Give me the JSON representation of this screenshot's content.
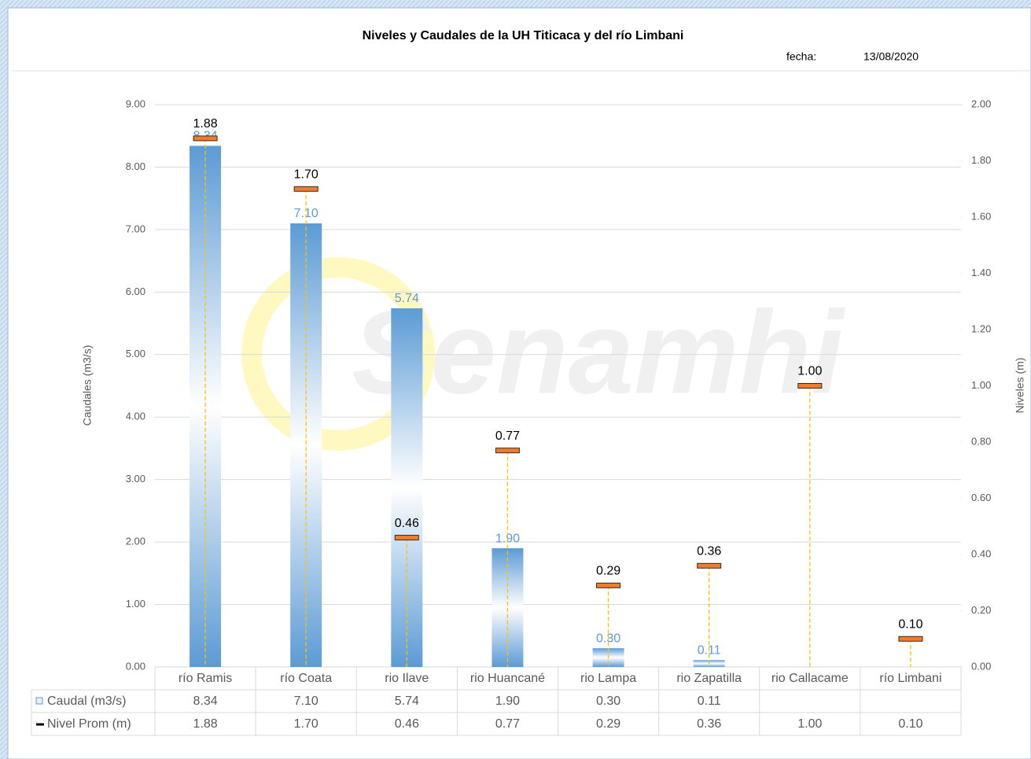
{
  "chart_data": {
    "type": "bar_line",
    "title": "Niveles y Caudales de la UH Titicaca y del río Limbani",
    "date_label": "fecha:",
    "date": "13/08/2020",
    "watermark": "Senamhi",
    "ylabel": "Caudales (m3/s)",
    "y2label": "Niveles (m)",
    "categories": [
      "río Ramis",
      "río Coata",
      "rio Ilave",
      "rio Huancané",
      "rio Lampa",
      "rio Zapatilla",
      "rio Callacame",
      "río Limbani"
    ],
    "series": [
      {
        "name": "Caudal (m3/s)",
        "type": "bar",
        "color": "#5b9bd5",
        "axis": "y",
        "values": [
          8.34,
          7.1,
          5.74,
          1.9,
          0.3,
          0.11,
          null,
          null
        ],
        "value_labels": [
          "8.34",
          "7.10",
          "5.74",
          "1.90",
          "0.30",
          "0.11",
          null,
          null
        ]
      },
      {
        "name": "Nivel Prom (m)",
        "type": "marker",
        "color": "#ed7d31",
        "axis": "y2",
        "values": [
          1.88,
          1.7,
          0.46,
          0.77,
          0.29,
          0.36,
          1.0,
          0.1
        ],
        "value_labels": [
          "1.88",
          "1.70",
          "0.46",
          "0.77",
          "0.29",
          "0.36",
          "1.00",
          "0.10"
        ]
      }
    ],
    "ylim": [
      0,
      9
    ],
    "yticks": [
      {
        "value": 0,
        "label": "0.00"
      },
      {
        "value": 1,
        "label": "1.00"
      },
      {
        "value": 2,
        "label": "2.00"
      },
      {
        "value": 3,
        "label": "3.00"
      },
      {
        "value": 4,
        "label": "4.00"
      },
      {
        "value": 5,
        "label": "5.00"
      },
      {
        "value": 6,
        "label": "6.00"
      },
      {
        "value": 7,
        "label": "7.00"
      },
      {
        "value": 8,
        "label": "8.00"
      },
      {
        "value": 9,
        "label": "9.00"
      }
    ],
    "y2lim": [
      0,
      2
    ],
    "y2ticks": [
      {
        "value": 0,
        "label": "0.00"
      },
      {
        "value": 0.2,
        "label": "0.20"
      },
      {
        "value": 0.4,
        "label": "0.40"
      },
      {
        "value": 0.6,
        "label": "0.60"
      },
      {
        "value": 0.8,
        "label": "0.80"
      },
      {
        "value": 1,
        "label": "1.00"
      },
      {
        "value": 1.2,
        "label": "1.20"
      },
      {
        "value": 1.4,
        "label": "1.40"
      },
      {
        "value": 1.6,
        "label": "1.60"
      },
      {
        "value": 1.8,
        "label": "1.80"
      },
      {
        "value": 2,
        "label": "2.00"
      }
    ],
    "grid": true
  }
}
